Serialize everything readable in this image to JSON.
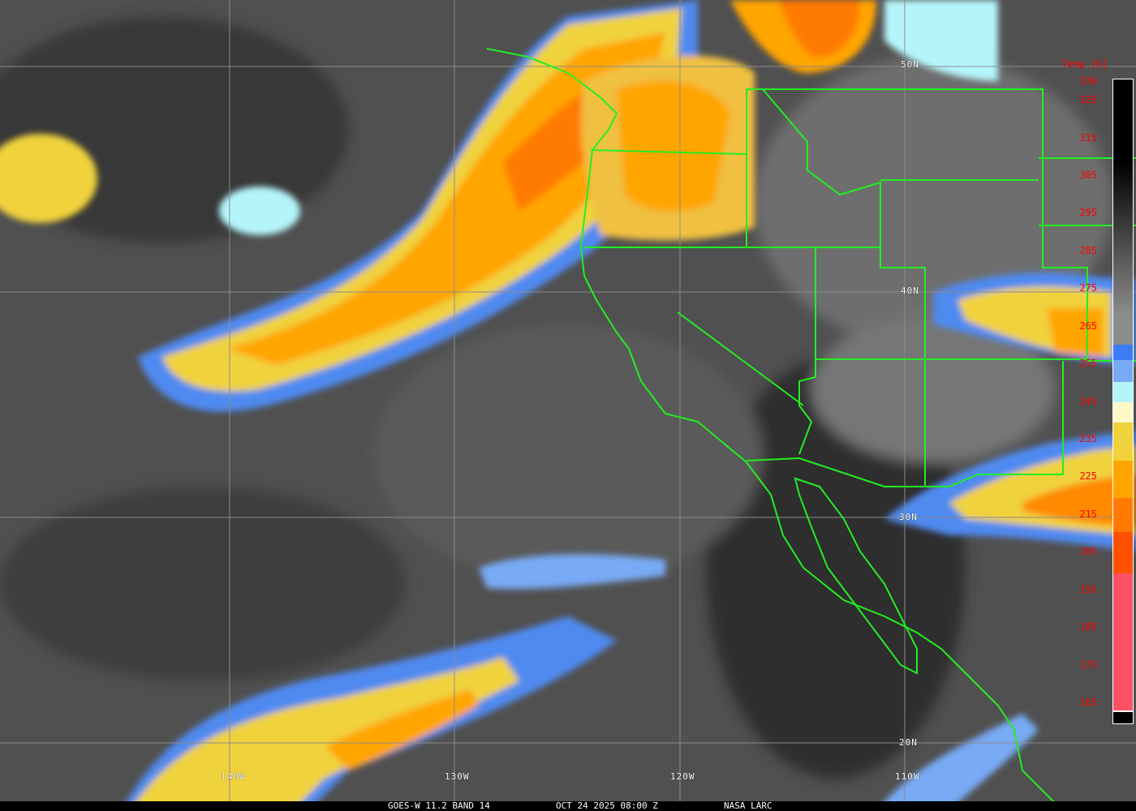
{
  "caption": {
    "satellite": "GOES-W 11.2 BAND 14",
    "datetime": "OCT 24 2025 08:00 Z",
    "source": "NASA LARC"
  },
  "colorbar": {
    "title": "Temp [K]",
    "ticks": [
      "330",
      "325",
      "315",
      "305",
      "295",
      "285",
      "275",
      "265",
      "255",
      "245",
      "235",
      "225",
      "215",
      "205",
      "195",
      "185",
      "175",
      "165"
    ],
    "range_k": [
      165,
      330
    ],
    "colors": {
      "warm": "#000000",
      "mid": "#8c8c8c",
      "blue": "#3a7cf5",
      "lightblue": "#78aaf5",
      "cyan": "#b4f5fa",
      "cream": "#fff9c8",
      "yellow": "#f0d23c",
      "orange": "#ffa500",
      "darkorange": "#ff7a00",
      "redorange": "#ff5000",
      "pink": "#ff5064"
    }
  },
  "grid": {
    "longitude_labels": [
      "140W",
      "130W",
      "120W",
      "110W"
    ],
    "latitude_labels": [
      "50N",
      "40N",
      "30N",
      "20N"
    ]
  },
  "overlay_color": "#22ee22"
}
